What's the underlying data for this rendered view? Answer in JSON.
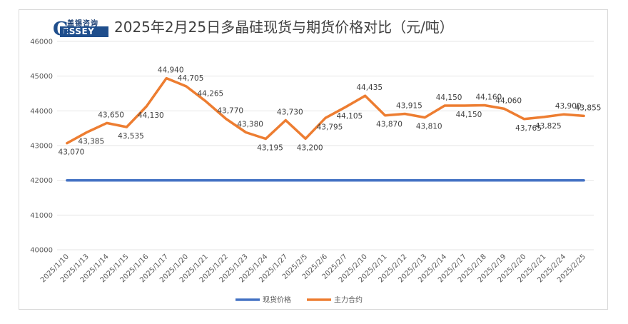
{
  "logo": {
    "cn": "盖锡咨询",
    "en": "ESSEY",
    "g": "G"
  },
  "chart_data": {
    "type": "line",
    "title": "2025年2月25日多晶硅现货与期货价格对比（元/吨）",
    "categories": [
      "2025/1/10",
      "2025/1/13",
      "2025/1/14",
      "2025/1/15",
      "2025/1/16",
      "2025/1/17",
      "2025/1/20",
      "2025/1/21",
      "2025/1/22",
      "2025/1/23",
      "2025/1/24",
      "2025/1/27",
      "2025/2/5",
      "2025/2/6",
      "2025/2/7",
      "2025/2/10",
      "2025/2/11",
      "2025/2/12",
      "2025/2/13",
      "2025/2/14",
      "2025/2/17",
      "2025/2/18",
      "2025/2/19",
      "2025/2/20",
      "2025/2/21",
      "2025/2/24",
      "2025/2/25"
    ],
    "series": [
      {
        "name": "现货价格",
        "color": "#4472c4",
        "values": [
          42000,
          42000,
          42000,
          42000,
          42000,
          42000,
          42000,
          42000,
          42000,
          42000,
          42000,
          42000,
          42000,
          42000,
          42000,
          42000,
          42000,
          42000,
          42000,
          42000,
          42000,
          42000,
          42000,
          42000,
          42000,
          42000,
          42000
        ]
      },
      {
        "name": "主力合约",
        "color": "#ed7d31",
        "values": [
          43070,
          43385,
          43650,
          43535,
          44130,
          44940,
          44705,
          44265,
          43770,
          43380,
          43195,
          43730,
          43200,
          43795,
          44105,
          44435,
          43870,
          43915,
          43810,
          44150,
          44150,
          44160,
          44060,
          43765,
          43825,
          43900,
          43855
        ],
        "labels": [
          "43,070",
          "43,385",
          "43,650",
          "43,535",
          "44,130",
          "44,940",
          "44,705",
          "44,265",
          "43,770",
          "43,380",
          "43,195",
          "43,730",
          "43,200",
          "43,795",
          "44,105",
          "44,435",
          "43,870",
          "43,915",
          "43,810",
          "44,150",
          "44,150",
          "44,160",
          "44,060",
          "43,765",
          "43,825",
          "43,900",
          "43,855"
        ]
      }
    ],
    "yticks": [
      "40000",
      "41000",
      "42000",
      "43000",
      "44000",
      "45000",
      "46000"
    ],
    "ylim": [
      40000,
      46000
    ],
    "grid": true,
    "legend_position": "bottom"
  }
}
